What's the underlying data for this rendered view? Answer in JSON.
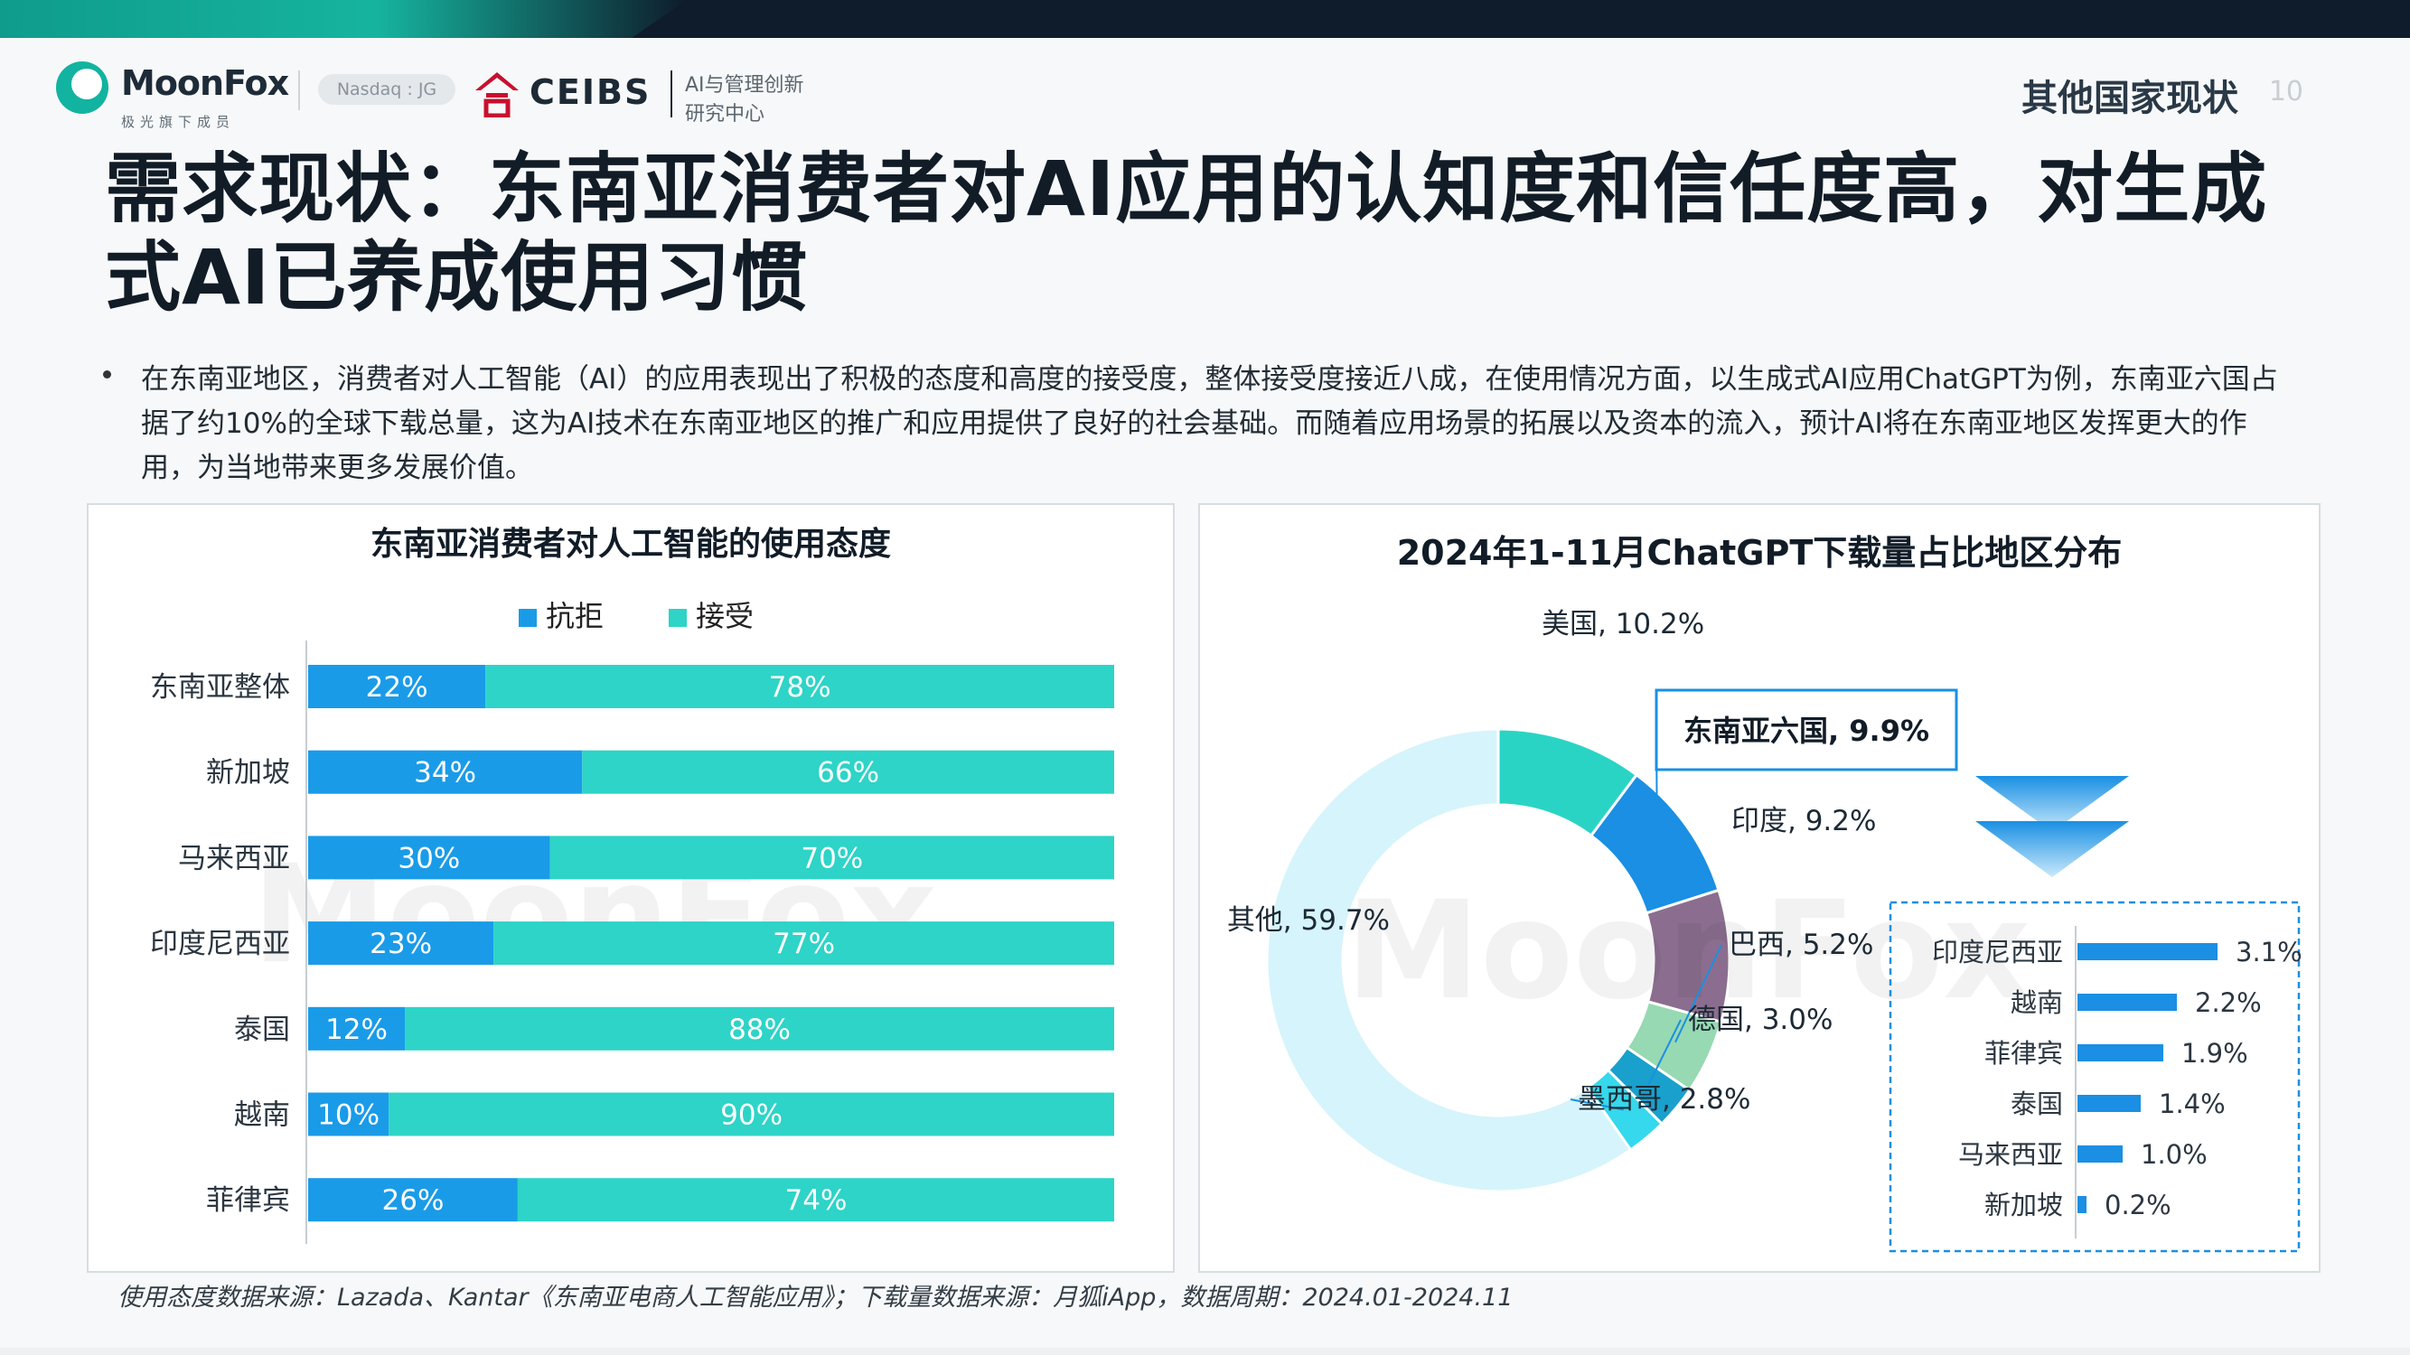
{
  "header": {
    "brand_name": "MoonFox",
    "brand_sub": "极光旗下成员",
    "nasdaq": "Nasdaq : JG",
    "ceibs_name": "CEIBS",
    "ceibs_center_line1": "AI与管理创新",
    "ceibs_center_line2": "研究中心",
    "section": "其他国家现状",
    "page": "10"
  },
  "title": "需求现状：东南亚消费者对AI应用的认知度和信任度高，对生成式AI已养成使用习惯",
  "bullet": "在东南亚地区，消费者对人工智能（AI）的应用表现出了积极的态度和高度的接受度，整体接受度接近八成，在使用情况方面，以生成式AI应用ChatGPT为例，东南亚六国占据了约10%的全球下载总量，这为AI技术在东南亚地区的推广和应用提供了良好的社会基础。而随着应用场景的拓展以及资本的流入，预计AI将在东南亚地区发挥更大的作用，为当地带来更多发展价值。",
  "watermark": "MoonFox",
  "source": "使用态度数据来源：Lazada、Kantar《东南亚电商人工智能应用》；下载量数据来源：月狐iApp，数据周期：2024.01-2024.11",
  "colors": {
    "reject": "#1a9be8",
    "accept": "#2dd4c7",
    "usa": "#2ad4c4",
    "sea6": "#1a8fe3",
    "india": "#8b6e8f",
    "brazil": "#97d9b2",
    "germany": "#1aa0cc",
    "mexico": "#35d8ec",
    "other": "#d6f4fb",
    "sub_bar": "#1a8fe3"
  },
  "chart_data": [
    {
      "type": "bar",
      "orientation": "horizontal",
      "stacked": true,
      "title": "东南亚消费者对人工智能的使用态度",
      "categories": [
        "东南亚整体",
        "新加坡",
        "马来西亚",
        "印度尼西亚",
        "泰国",
        "越南",
        "菲律宾"
      ],
      "series": [
        {
          "name": "抗拒",
          "values": [
            22,
            34,
            30,
            23,
            12,
            10,
            26
          ],
          "labels": [
            "22%",
            "34%",
            "30%",
            "23%",
            "12%",
            "10%",
            "26%"
          ]
        },
        {
          "name": "接受",
          "values": [
            78,
            66,
            70,
            77,
            88,
            90,
            74
          ],
          "labels": [
            "78%",
            "66%",
            "70%",
            "77%",
            "88%",
            "90%",
            "74%"
          ]
        }
      ],
      "xlim": [
        0,
        100
      ],
      "legend": "top"
    },
    {
      "type": "pie",
      "donut": true,
      "title": "2024年1-11月ChatGPT下载量占比地区分布",
      "slices": [
        {
          "label": "美国, 10.2%",
          "value": 10.2
        },
        {
          "label": "东南亚六国, 9.9%",
          "value": 9.9
        },
        {
          "label": "印度, 9.2%",
          "value": 9.2
        },
        {
          "label": "巴西, 5.2%",
          "value": 5.2
        },
        {
          "label": "德国, 3.0%",
          "value": 3.0
        },
        {
          "label": "墨西哥, 2.8%",
          "value": 2.8
        },
        {
          "label": "其他, 59.7%",
          "value": 59.7
        }
      ]
    },
    {
      "type": "bar",
      "orientation": "horizontal",
      "title": "",
      "categories": [
        "印度尼西亚",
        "越南",
        "菲律宾",
        "泰国",
        "马来西亚",
        "新加坡"
      ],
      "values": [
        3.1,
        2.2,
        1.9,
        1.4,
        1.0,
        0.2
      ],
      "labels": [
        "3.1%",
        "2.2%",
        "1.9%",
        "1.4%",
        "1.0%",
        "0.2%"
      ]
    }
  ]
}
